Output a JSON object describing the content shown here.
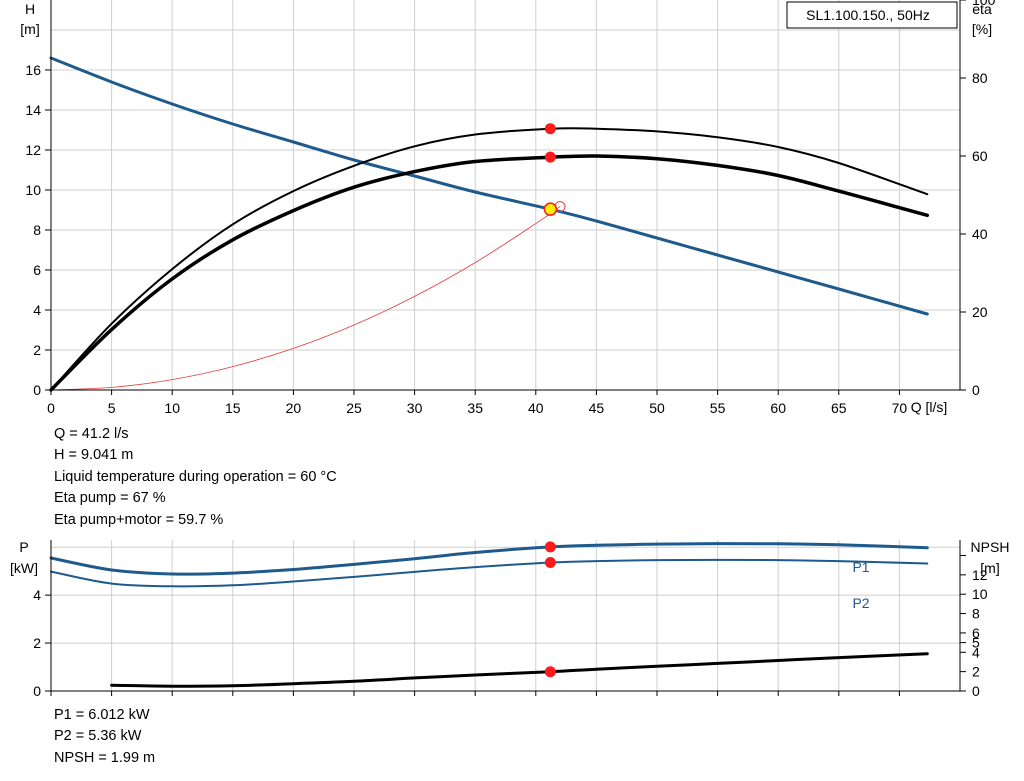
{
  "chart_data": [
    {
      "type": "line",
      "title": "SL1.100.150., 50Hz",
      "xlabel": "Q [l/s]",
      "ylabel_left": [
        "H",
        "[m]"
      ],
      "ylabel_right": [
        "eta",
        "[%]"
      ],
      "xlim": [
        0,
        75
      ],
      "ylim_left": [
        0,
        19.5
      ],
      "ylim_right": [
        0,
        100
      ],
      "x_ticks": [
        0,
        5,
        10,
        15,
        20,
        25,
        30,
        35,
        40,
        45,
        50,
        55,
        60,
        65,
        70
      ],
      "y_ticks_left": [
        0,
        2,
        4,
        6,
        8,
        10,
        12,
        14,
        16
      ],
      "y_ticks_right": [
        0,
        20,
        40,
        60,
        80,
        100
      ],
      "grid": true,
      "series": [
        {
          "key": "H",
          "axis": "left",
          "color": "#1f5a8c",
          "x": [
            0,
            5,
            10,
            15,
            20,
            25,
            30,
            35,
            41.2,
            45,
            50,
            55,
            60,
            65,
            72.3
          ],
          "y": [
            16.6,
            15.4,
            14.3,
            13.3,
            12.4,
            11.5,
            10.7,
            9.9,
            9.04,
            8.45,
            7.6,
            6.75,
            5.9,
            5.05,
            3.8
          ]
        },
        {
          "key": "eta_pump",
          "axis": "right",
          "color": "#000000",
          "x": [
            0,
            5,
            10,
            15,
            20,
            25,
            30,
            35,
            41.2,
            45,
            50,
            55,
            60,
            65,
            72.3
          ],
          "y": [
            0,
            17,
            31,
            42.5,
            51,
            57.5,
            62.5,
            65.5,
            67,
            67,
            66.3,
            64.8,
            62.3,
            58.2,
            50.2
          ]
        },
        {
          "key": "eta_pump_motor",
          "axis": "right",
          "color": "#000000",
          "x": [
            0,
            5,
            10,
            15,
            20,
            25,
            30,
            35,
            41.2,
            45,
            50,
            55,
            60,
            65,
            72.3
          ],
          "y": [
            0,
            15.5,
            28.5,
            38.5,
            46,
            52,
            56,
            58.6,
            59.7,
            60,
            59.3,
            57.6,
            55,
            51,
            44.8
          ]
        },
        {
          "key": "system_curve",
          "axis": "left",
          "color": "#e23b3b",
          "x": [
            0,
            5,
            10,
            15,
            20,
            25,
            30,
            35,
            40,
            42
          ],
          "y": [
            0,
            0.13,
            0.52,
            1.17,
            2.08,
            3.25,
            4.68,
            6.37,
            8.32,
            9.17
          ]
        }
      ],
      "operating_point": {
        "Q": 41.2,
        "H": 9.041,
        "eta_pump": 67,
        "eta_pump_motor": 59.7
      }
    },
    {
      "type": "line",
      "xlabel": "",
      "ylabel_left": [
        "P",
        "[kW]"
      ],
      "ylabel_right": [
        "NPSH",
        "[m]"
      ],
      "xlim": [
        0,
        75
      ],
      "ylim_left": [
        0,
        6.3
      ],
      "ylim_right": [
        0,
        15.6
      ],
      "x_ticks": [
        0,
        5,
        10,
        15,
        20,
        25,
        30,
        35,
        40,
        45,
        50,
        55,
        60,
        65,
        70
      ],
      "y_ticks_left": [
        0,
        2,
        4
      ],
      "y_ticks_right": [
        0,
        2,
        4,
        5,
        6,
        8,
        10,
        12
      ],
      "grid": true,
      "series": [
        {
          "key": "P1",
          "name": "P1",
          "axis": "left",
          "color": "#1f5a8c",
          "x": [
            0,
            5,
            10,
            15,
            20,
            25,
            30,
            35,
            41.2,
            45,
            50,
            55,
            60,
            65,
            72.3
          ],
          "y": [
            5.55,
            5.05,
            4.88,
            4.92,
            5.07,
            5.28,
            5.52,
            5.78,
            6.012,
            6.08,
            6.13,
            6.15,
            6.14,
            6.1,
            5.98
          ]
        },
        {
          "key": "P2",
          "name": "P2",
          "axis": "left",
          "color": "#1f5a8c",
          "x": [
            0,
            5,
            10,
            15,
            20,
            25,
            30,
            35,
            41.2,
            45,
            50,
            55,
            60,
            65,
            72.3
          ],
          "y": [
            4.98,
            4.48,
            4.37,
            4.41,
            4.57,
            4.76,
            4.97,
            5.17,
            5.36,
            5.42,
            5.46,
            5.47,
            5.46,
            5.42,
            5.32
          ]
        },
        {
          "key": "NPSH",
          "axis": "right",
          "color": "#000000",
          "x": [
            5,
            10,
            15,
            20,
            25,
            30,
            35,
            41.2,
            45,
            50,
            55,
            60,
            65,
            72.3
          ],
          "y": [
            0.6,
            0.5,
            0.55,
            0.75,
            1.0,
            1.35,
            1.65,
            1.99,
            2.25,
            2.55,
            2.85,
            3.15,
            3.45,
            3.85
          ]
        }
      ],
      "operating_point": {
        "Q": 41.2,
        "P1": 6.012,
        "P2": 5.36,
        "NPSH": 1.99
      }
    }
  ],
  "info_top": [
    "Q = 41.2 l/s",
    "H = 9.041 m",
    "Liquid temperature during operation = 60 °C",
    "Eta pump = 67 %",
    "Eta pump+motor = 59.7 %"
  ],
  "info_bottom": [
    "P1 = 6.012 kW",
    "P2 = 5.36 kW",
    "NPSH = 1.99 m"
  ],
  "colors": {
    "grid": "#cfcfcf",
    "axis": "#000000",
    "head_curve": "#1f5a8c",
    "power_curves": "#1f5a8c",
    "efficiency_curves": "#000000",
    "system_curve": "#e23b3b",
    "operating_marker": "#ff1a1a",
    "duty_marker_fill": "#ffee00"
  }
}
